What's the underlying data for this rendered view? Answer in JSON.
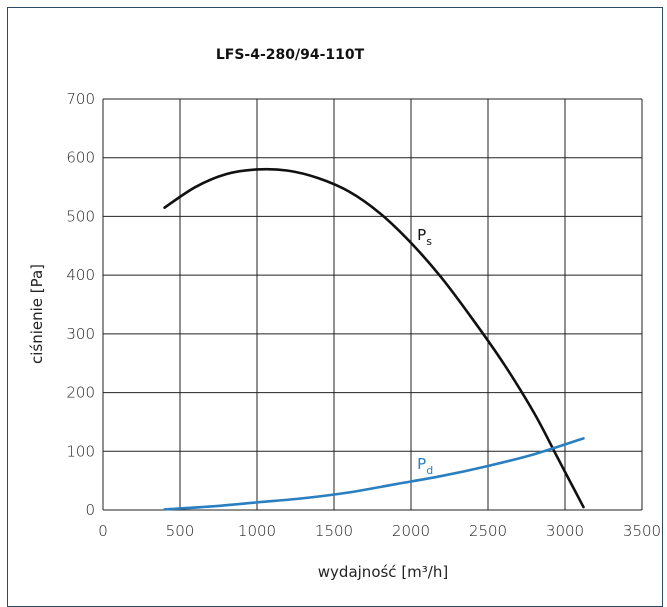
{
  "chart_data": {
    "type": "line",
    "title": "LFS-4-280/94-110T",
    "xlabel": "wydajność [m³/h]",
    "ylabel": "ciśnienie [Pa]",
    "xlim": [
      0,
      3500
    ],
    "ylim": [
      0,
      700
    ],
    "x_ticks": [
      "0",
      "500",
      "1000",
      "1500",
      "2000",
      "2500",
      "3000",
      "3500"
    ],
    "y_ticks": [
      "0",
      "100",
      "200",
      "300",
      "400",
      "500",
      "600",
      "700"
    ],
    "grid": true,
    "series": [
      {
        "name": "Ps",
        "label_main": "P",
        "label_sub": "s",
        "color": "#111111",
        "points": [
          [
            400,
            515
          ],
          [
            600,
            550
          ],
          [
            800,
            572
          ],
          [
            1000,
            580
          ],
          [
            1200,
            578
          ],
          [
            1400,
            565
          ],
          [
            1600,
            542
          ],
          [
            1800,
            505
          ],
          [
            2000,
            455
          ],
          [
            2200,
            395
          ],
          [
            2400,
            325
          ],
          [
            2600,
            250
          ],
          [
            2800,
            165
          ],
          [
            2950,
            90
          ],
          [
            3000,
            65
          ],
          [
            3120,
            5
          ]
        ]
      },
      {
        "name": "Pd",
        "label_main": "P",
        "label_sub": "d",
        "color": "#2a7fc0",
        "points": [
          [
            400,
            1
          ],
          [
            700,
            6
          ],
          [
            1000,
            13
          ],
          [
            1300,
            20
          ],
          [
            1600,
            30
          ],
          [
            1900,
            44
          ],
          [
            2200,
            58
          ],
          [
            2500,
            75
          ],
          [
            2800,
            95
          ],
          [
            3120,
            122
          ]
        ]
      }
    ]
  }
}
